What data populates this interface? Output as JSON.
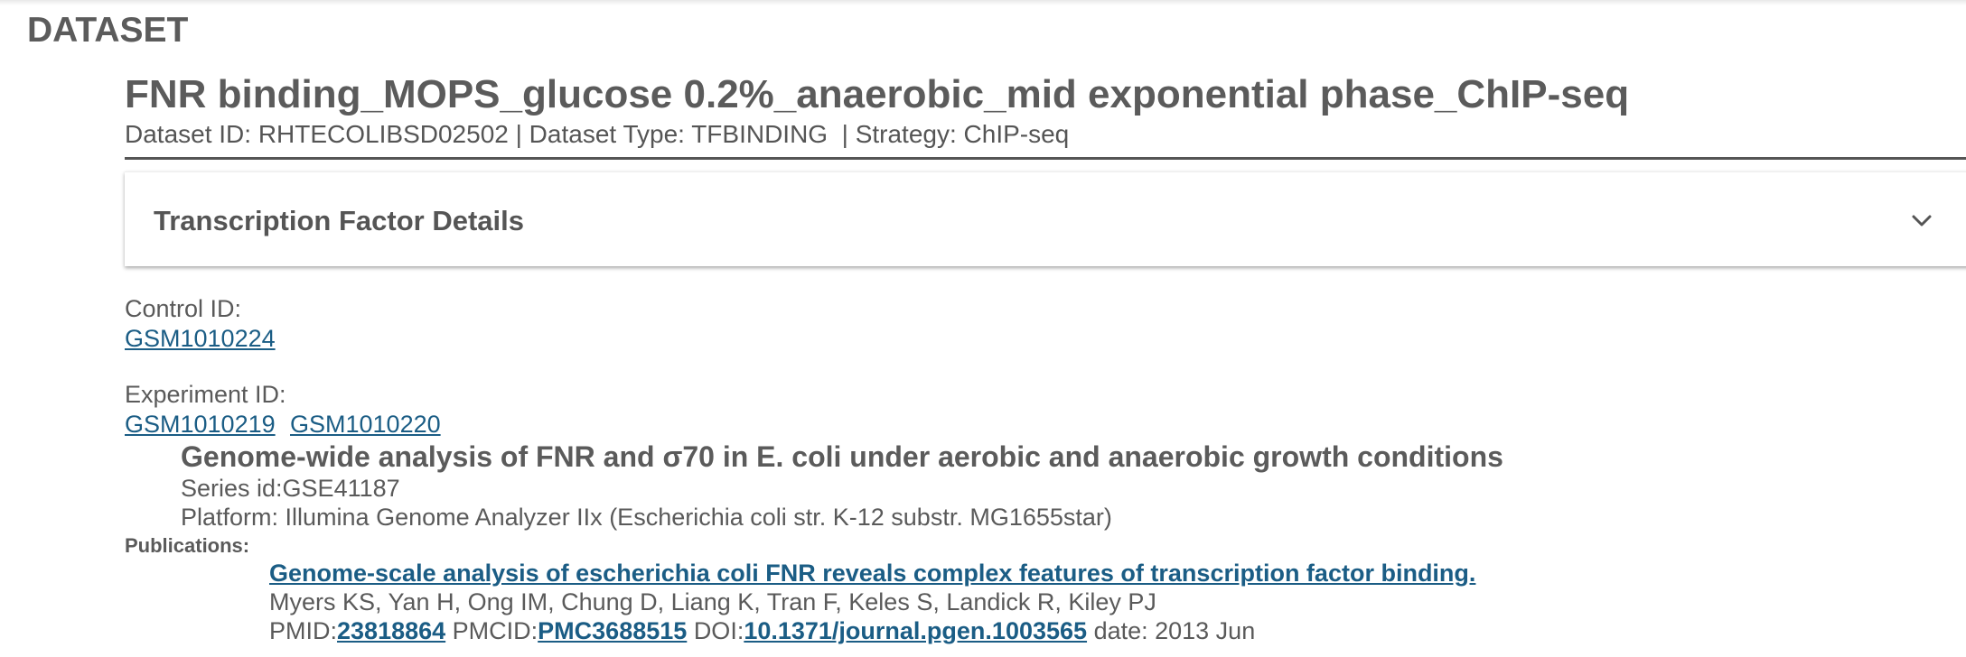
{
  "page": {
    "heading": "DATASET"
  },
  "dataset": {
    "title": "FNR binding_MOPS_glucose 0.2%_anaerobic_mid exponential phase_ChIP-seq",
    "meta_id": "Dataset ID: RHTECOLIBSD02502 | Dataset Type: TFBINDING ",
    "meta_strategy": " | Strategy: ChIP-seq"
  },
  "tf_panel": {
    "title": "Transcription Factor Details",
    "icon": "chevron-down-icon"
  },
  "control": {
    "label": "Control ID:",
    "ids": [
      "GSM1010224"
    ]
  },
  "experiment": {
    "label": "Experiment ID:",
    "ids": [
      "GSM1010219",
      "GSM1010220"
    ]
  },
  "series": {
    "title": "Genome-wide analysis of FNR and σ70 in E. coli under aerobic and anaerobic growth conditions",
    "series_id": "Series id:GSE41187",
    "platform": "Platform: Illumina Genome Analyzer IIx (Escherichia coli str. K-12 substr. MG1655star)"
  },
  "publications": {
    "label": "Publications:",
    "items": [
      {
        "title": "Genome-scale analysis of escherichia coli FNR reveals complex features of transcription factor binding.",
        "authors": "Myers KS, Yan H, Ong IM, Chung D, Liang K, Tran F, Keles S, Landick R, Kiley PJ",
        "pmid_label": "PMID:",
        "pmid": "23818864",
        "pmcid_label": "PMCID:",
        "pmcid": "PMC3688515",
        "doi_label": "DOI:",
        "doi": "10.1371/journal.pgen.1003565",
        "date": "date: 2013 Jun"
      }
    ]
  },
  "colors": {
    "link": "#1b5d85",
    "text": "#5a5a5a",
    "heading": "#5b5b5b"
  }
}
